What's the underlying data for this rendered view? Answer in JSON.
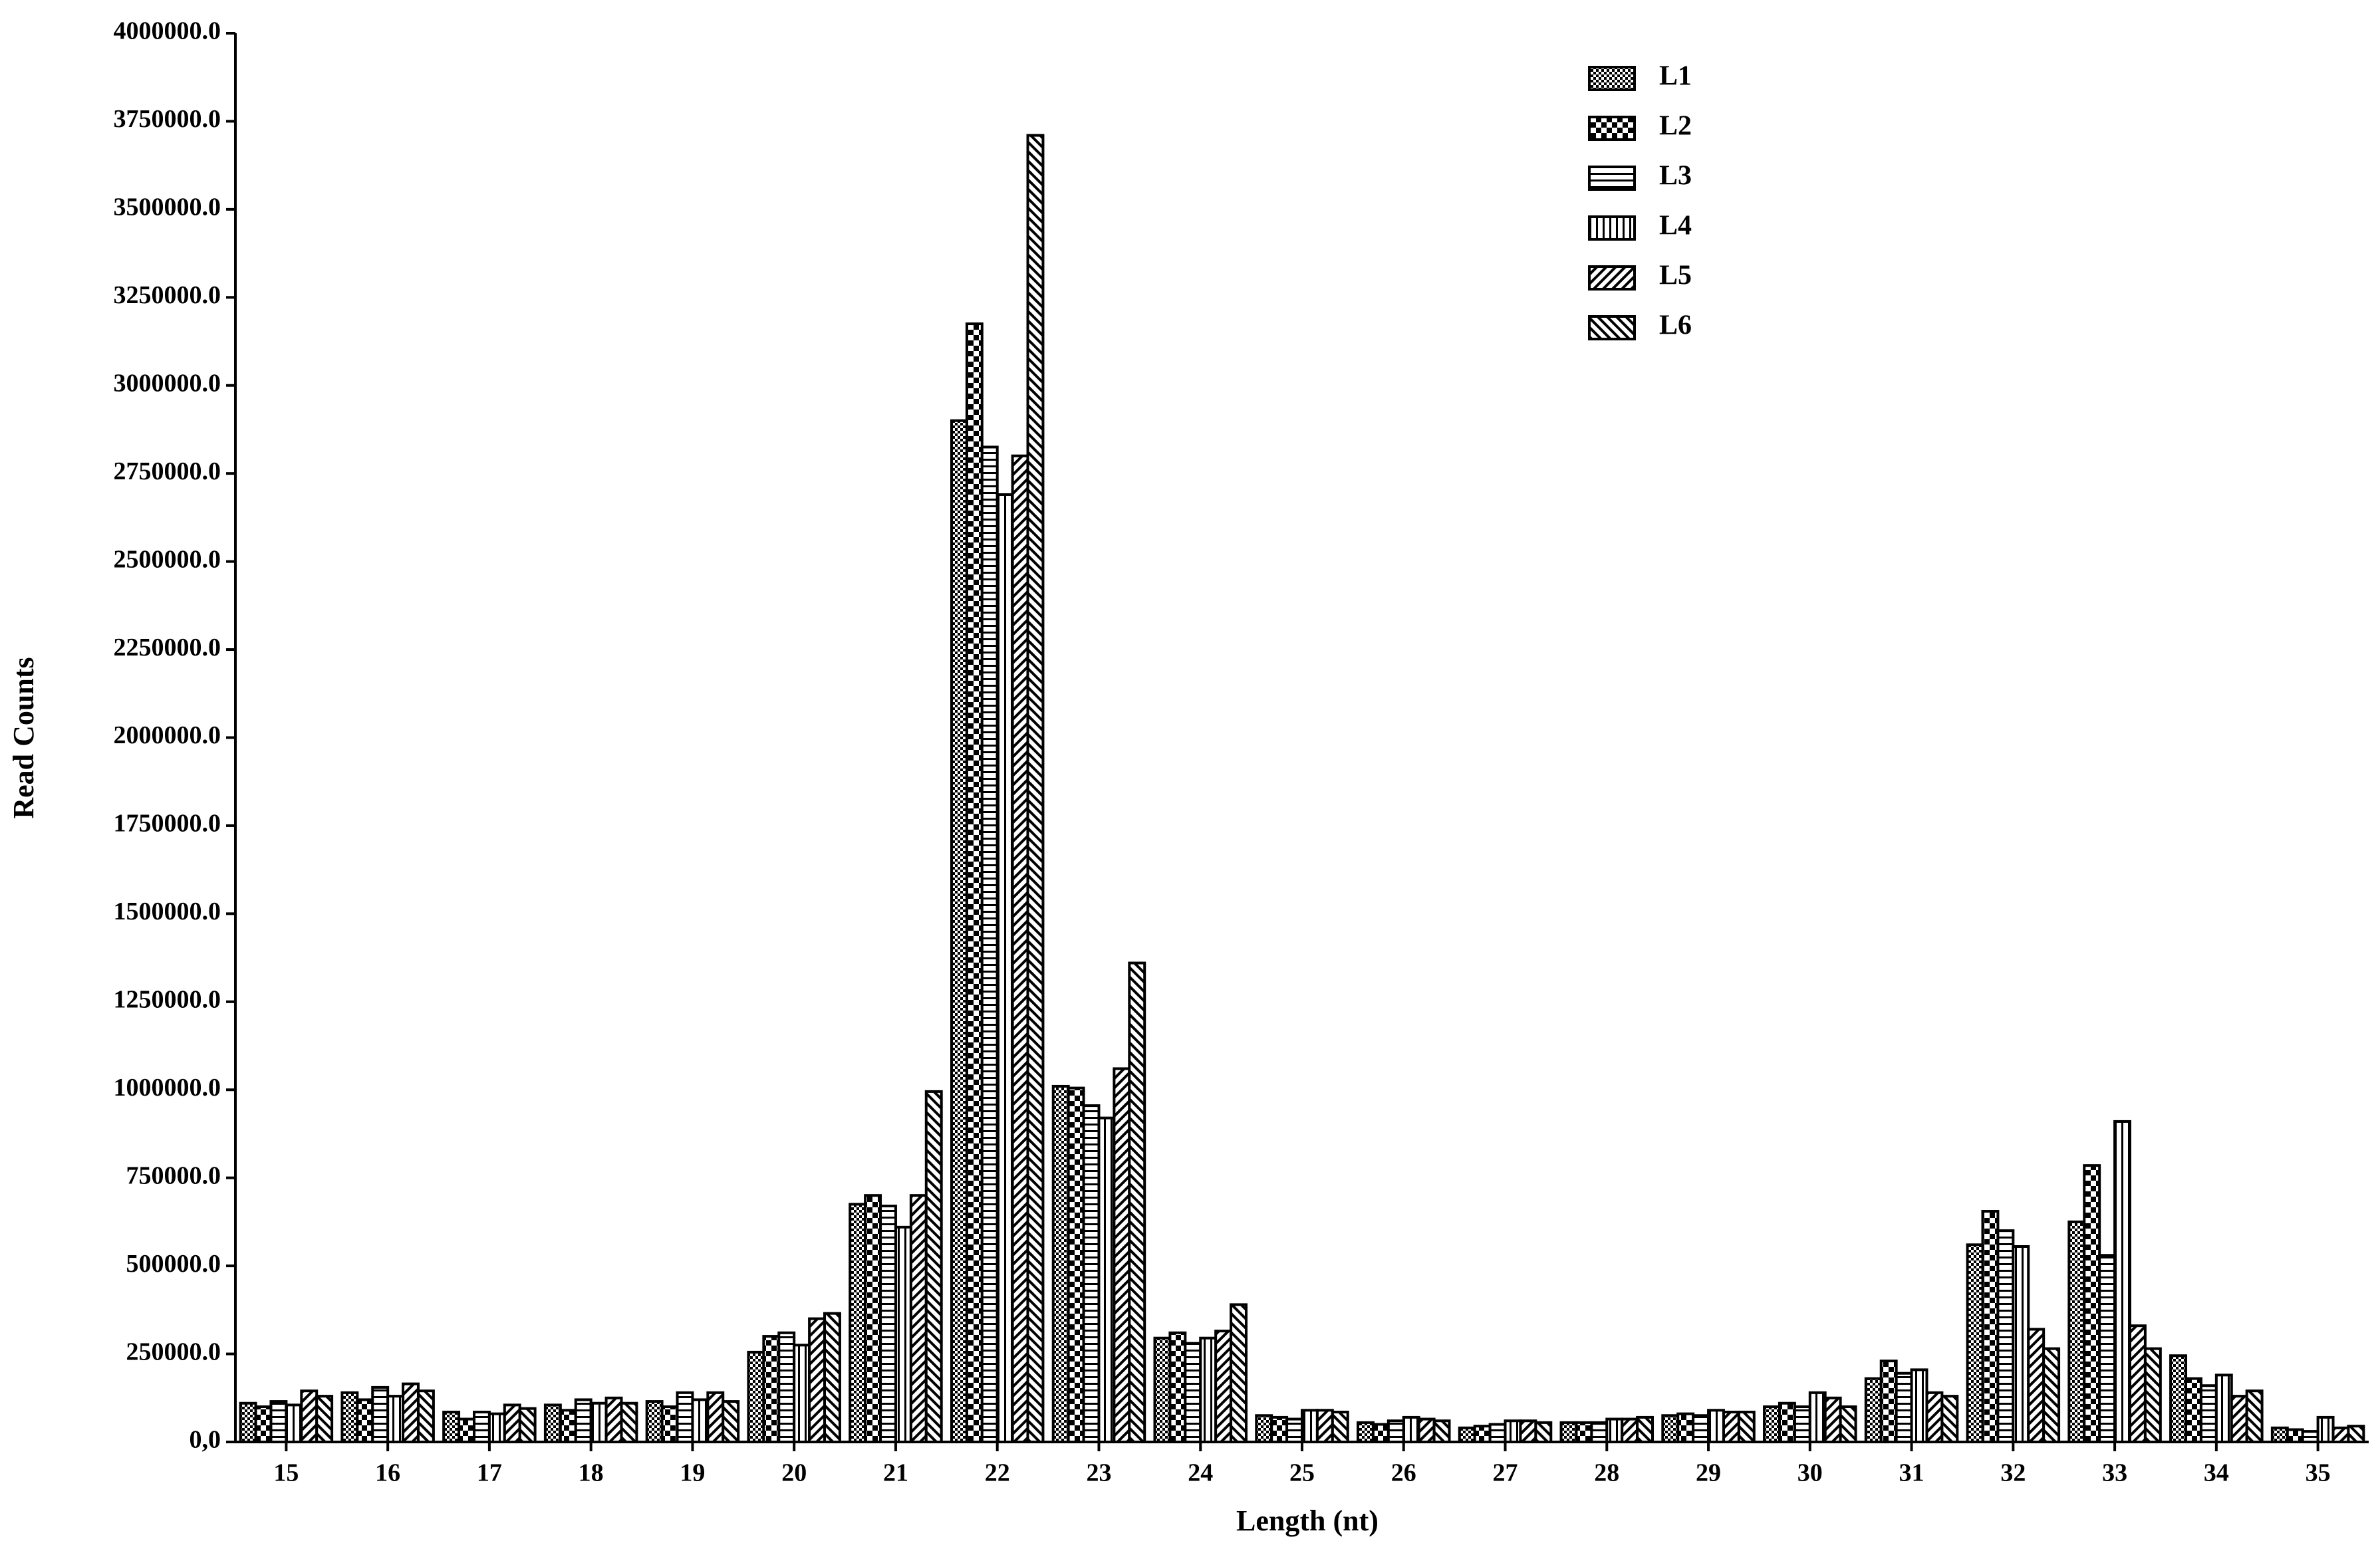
{
  "chart_data": {
    "type": "bar",
    "x_label": "Length (nt)",
    "y_label": "Read Counts",
    "categories": [
      "15",
      "16",
      "17",
      "18",
      "19",
      "20",
      "21",
      "22",
      "23",
      "24",
      "25",
      "26",
      "27",
      "28",
      "29",
      "30",
      "31",
      "32",
      "33",
      "34",
      "35"
    ],
    "series": [
      {
        "name": "L1",
        "color": "#000000",
        "values": [
          110000,
          140000,
          85000,
          105000,
          115000,
          255000,
          675000,
          2900000,
          1010000,
          295000,
          75000,
          55000,
          40000,
          55000,
          75000,
          100000,
          180000,
          560000,
          625000,
          245000,
          40000
        ]
      },
      {
        "name": "L2",
        "color": "#000000",
        "values": [
          100000,
          120000,
          65000,
          90000,
          100000,
          300000,
          700000,
          3175000,
          1005000,
          310000,
          70000,
          50000,
          45000,
          55000,
          80000,
          110000,
          230000,
          655000,
          785000,
          180000,
          35000
        ]
      },
      {
        "name": "L3",
        "color": "#000000",
        "values": [
          115000,
          155000,
          85000,
          120000,
          140000,
          310000,
          670000,
          2825000,
          955000,
          280000,
          65000,
          60000,
          50000,
          55000,
          75000,
          100000,
          195000,
          600000,
          530000,
          160000,
          30000
        ]
      },
      {
        "name": "L4",
        "color": "#000000",
        "values": [
          105000,
          130000,
          80000,
          110000,
          120000,
          275000,
          610000,
          2690000,
          920000,
          295000,
          90000,
          70000,
          60000,
          65000,
          90000,
          140000,
          205000,
          555000,
          910000,
          190000,
          70000
        ]
      },
      {
        "name": "L5",
        "color": "#000000",
        "values": [
          145000,
          165000,
          105000,
          125000,
          140000,
          350000,
          700000,
          2800000,
          1060000,
          315000,
          90000,
          65000,
          60000,
          65000,
          85000,
          125000,
          140000,
          320000,
          330000,
          130000,
          40000
        ]
      },
      {
        "name": "L6",
        "color": "#000000",
        "values": [
          130000,
          145000,
          95000,
          110000,
          115000,
          365000,
          995000,
          3710000,
          1360000,
          390000,
          85000,
          60000,
          55000,
          70000,
          85000,
          100000,
          130000,
          265000,
          265000,
          145000,
          45000
        ]
      }
    ],
    "ylim": [
      0,
      4000000
    ],
    "yticks": [
      {
        "value": 0,
        "label": "0,0"
      },
      {
        "value": 250000,
        "label": "250000.0"
      },
      {
        "value": 500000,
        "label": "500000.0"
      },
      {
        "value": 750000,
        "label": "750000.0"
      },
      {
        "value": 1000000,
        "label": "1000000.0"
      },
      {
        "value": 1250000,
        "label": "1250000.0"
      },
      {
        "value": 1500000,
        "label": "1500000.0"
      },
      {
        "value": 1750000,
        "label": "1750000.0"
      },
      {
        "value": 2000000,
        "label": "2000000.0"
      },
      {
        "value": 2250000,
        "label": "2250000.0"
      },
      {
        "value": 2500000,
        "label": "2500000.0"
      },
      {
        "value": 2750000,
        "label": "2750000.0"
      },
      {
        "value": 3000000,
        "label": "3000000.0"
      },
      {
        "value": 3250000,
        "label": "3250000.0"
      },
      {
        "value": 3500000,
        "label": "3500000.0"
      },
      {
        "value": 3750000,
        "label": "3750000.0"
      },
      {
        "value": 4000000,
        "label": "4000000.0"
      }
    ],
    "grid": false,
    "legend": "top-right"
  }
}
